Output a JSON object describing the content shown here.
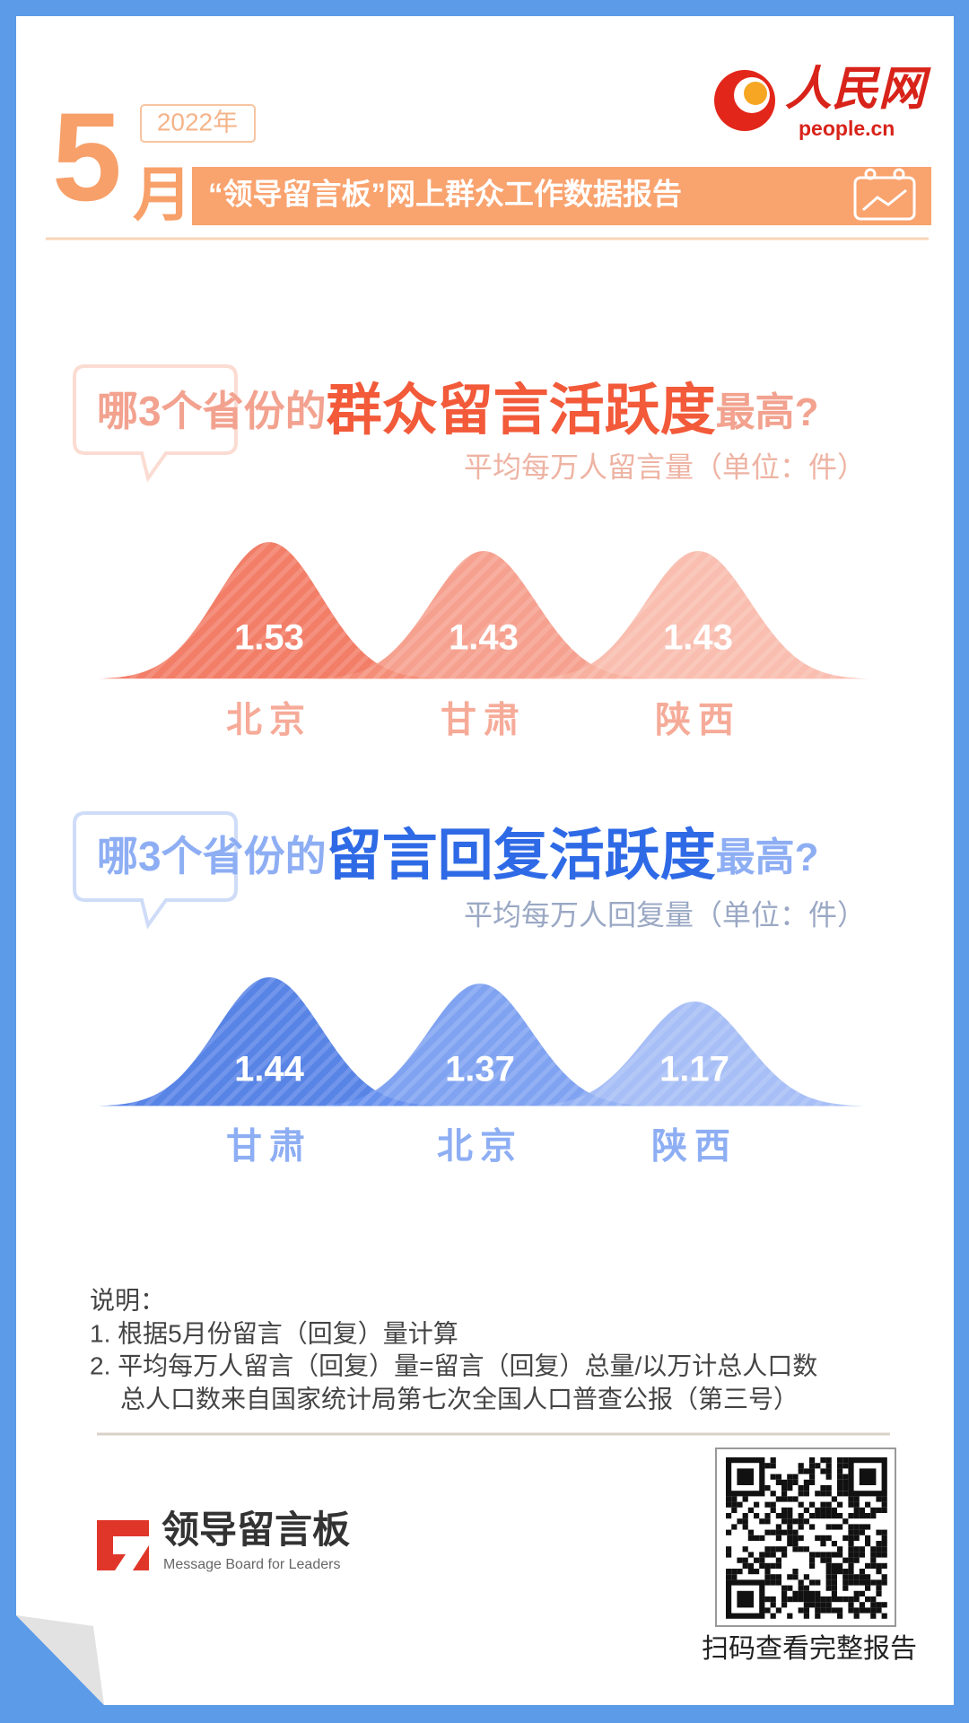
{
  "header": {
    "month_number": "5",
    "month_unit": "月",
    "year": "2022年",
    "title": "“领导留言板”网上群众工作数据报告",
    "brand": "人民网",
    "brand_site": "people.cn"
  },
  "chart_data": [
    {
      "type": "bell",
      "title": [
        "哪3个省份的",
        "群众留言活跃度",
        "最高?"
      ],
      "subtitle": "平均每万人留言量（单位：件）",
      "categories": [
        "北京",
        "甘肃",
        "陕西"
      ],
      "values": [
        1.53,
        1.43,
        1.43
      ],
      "colors": [
        "#f0674d",
        "#f4917b",
        "#f8b3a2"
      ],
      "label_color": "#f6ab99",
      "accent_color": "#f25a3a"
    },
    {
      "type": "bell",
      "title": [
        "哪3个省份的",
        "留言回复活跃度",
        "最高?"
      ],
      "subtitle": "平均每万人回复量（单位：件）",
      "categories": [
        "甘肃",
        "北京",
        "陕西"
      ],
      "values": [
        1.44,
        1.37,
        1.17
      ],
      "colors": [
        "#3b6fe2",
        "#6a93ee",
        "#98b4f4"
      ],
      "label_color": "#8eaef4",
      "accent_color": "#2f6ae6"
    }
  ],
  "notes": {
    "heading": "说明：",
    "items": [
      "1. 根据5月份留言（回复）量计算",
      "2. 平均每万人留言（回复）量=留言（回复）总量/以万计总人口数",
      "总人口数来自国家统计局第七次全国人口普查公报（第三号）"
    ]
  },
  "footer": {
    "logo_name": "领导留言板",
    "logo_english": "Message Board for Leaders",
    "qr_caption": "扫码查看完整报告"
  }
}
